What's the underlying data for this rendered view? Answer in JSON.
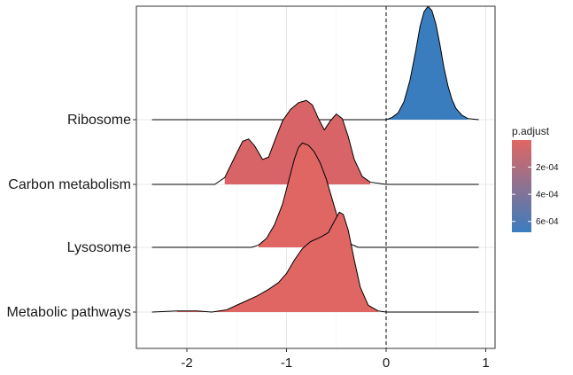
{
  "chart_data": {
    "type": "ridgeline",
    "title": "",
    "xlabel": "",
    "ylabel": "",
    "xlim": [
      -2.5,
      1.1
    ],
    "xticks": [
      -2,
      -1,
      0,
      1
    ],
    "xtick_labels": [
      "-2",
      "-1",
      "0",
      "1"
    ],
    "reference_line_x": 0,
    "reference_line_style": "dashed",
    "grid": true,
    "legend_placement": "right",
    "categories": [
      "Ribosome",
      "Carbon metabolism",
      "Lysosome",
      "Metabolic pathways"
    ],
    "series": [
      {
        "category": "Ribosome",
        "p_adjust": 0.00068,
        "fill": "#3A7DBE",
        "range": [
          -2.35,
          0.93
        ],
        "density": [
          [
            -2.35,
            0
          ],
          [
            0.0,
            0
          ],
          [
            0.06,
            0.02
          ],
          [
            0.12,
            0.06
          ],
          [
            0.18,
            0.16
          ],
          [
            0.24,
            0.35
          ],
          [
            0.3,
            0.62
          ],
          [
            0.34,
            0.82
          ],
          [
            0.38,
            0.95
          ],
          [
            0.42,
            1.0
          ],
          [
            0.46,
            0.96
          ],
          [
            0.5,
            0.84
          ],
          [
            0.54,
            0.66
          ],
          [
            0.58,
            0.46
          ],
          [
            0.62,
            0.3
          ],
          [
            0.66,
            0.18
          ],
          [
            0.7,
            0.1
          ],
          [
            0.76,
            0.04
          ],
          [
            0.82,
            0.01
          ],
          [
            0.93,
            0
          ]
        ]
      },
      {
        "category": "Carbon metabolism",
        "p_adjust": 6e-05,
        "fill": "#D96467",
        "range": [
          -2.35,
          0.93
        ],
        "density": [
          [
            -2.35,
            0
          ],
          [
            -1.72,
            0
          ],
          [
            -1.62,
            0.06
          ],
          [
            -1.52,
            0.24
          ],
          [
            -1.44,
            0.38
          ],
          [
            -1.38,
            0.4
          ],
          [
            -1.32,
            0.34
          ],
          [
            -1.24,
            0.22
          ],
          [
            -1.18,
            0.24
          ],
          [
            -1.12,
            0.38
          ],
          [
            -1.04,
            0.56
          ],
          [
            -0.96,
            0.66
          ],
          [
            -0.88,
            0.72
          ],
          [
            -0.8,
            0.74
          ],
          [
            -0.74,
            0.7
          ],
          [
            -0.68,
            0.58
          ],
          [
            -0.62,
            0.48
          ],
          [
            -0.56,
            0.56
          ],
          [
            -0.5,
            0.62
          ],
          [
            -0.44,
            0.58
          ],
          [
            -0.38,
            0.42
          ],
          [
            -0.32,
            0.22
          ],
          [
            -0.24,
            0.07
          ],
          [
            -0.16,
            0.02
          ],
          [
            0.0,
            0
          ],
          [
            0.93,
            0
          ]
        ]
      },
      {
        "category": "Lysosome",
        "p_adjust": 1e-06,
        "fill": "#E06664",
        "range": [
          -2.35,
          0.93
        ],
        "density": [
          [
            -2.35,
            0
          ],
          [
            -1.35,
            0
          ],
          [
            -1.28,
            0.02
          ],
          [
            -1.2,
            0.08
          ],
          [
            -1.12,
            0.2
          ],
          [
            -1.04,
            0.38
          ],
          [
            -0.98,
            0.58
          ],
          [
            -0.92,
            0.78
          ],
          [
            -0.88,
            0.88
          ],
          [
            -0.84,
            0.92
          ],
          [
            -0.78,
            0.9
          ],
          [
            -0.72,
            0.84
          ],
          [
            -0.66,
            0.74
          ],
          [
            -0.6,
            0.6
          ],
          [
            -0.54,
            0.42
          ],
          [
            -0.48,
            0.24
          ],
          [
            -0.42,
            0.1
          ],
          [
            -0.36,
            0.03
          ],
          [
            -0.28,
            0
          ],
          [
            0.93,
            0
          ]
        ]
      },
      {
        "category": "Metabolic pathways",
        "p_adjust": 1e-06,
        "fill": "#E06664",
        "range": [
          -2.35,
          0.93
        ],
        "density": [
          [
            -2.35,
            0
          ],
          [
            -2.1,
            0.01
          ],
          [
            -1.9,
            0.01
          ],
          [
            -1.75,
            0.0
          ],
          [
            -1.6,
            0.02
          ],
          [
            -1.45,
            0.08
          ],
          [
            -1.3,
            0.14
          ],
          [
            -1.18,
            0.2
          ],
          [
            -1.08,
            0.26
          ],
          [
            -1.0,
            0.34
          ],
          [
            -0.92,
            0.46
          ],
          [
            -0.84,
            0.56
          ],
          [
            -0.76,
            0.62
          ],
          [
            -0.66,
            0.66
          ],
          [
            -0.58,
            0.7
          ],
          [
            -0.52,
            0.8
          ],
          [
            -0.47,
            0.88
          ],
          [
            -0.43,
            0.86
          ],
          [
            -0.38,
            0.72
          ],
          [
            -0.32,
            0.46
          ],
          [
            -0.26,
            0.22
          ],
          [
            -0.18,
            0.06
          ],
          [
            -0.08,
            0.01
          ],
          [
            0.0,
            0
          ],
          [
            0.93,
            0
          ]
        ]
      }
    ],
    "legend": {
      "title": "p.adjust",
      "labels": [
        "2e-04",
        "4e-04",
        "6e-04"
      ],
      "label_values": [
        0.0002,
        0.0004,
        0.0006
      ],
      "range": [
        1e-06,
        0.00068
      ],
      "color_low": "#E06664",
      "color_high": "#3A7DBE"
    }
  }
}
